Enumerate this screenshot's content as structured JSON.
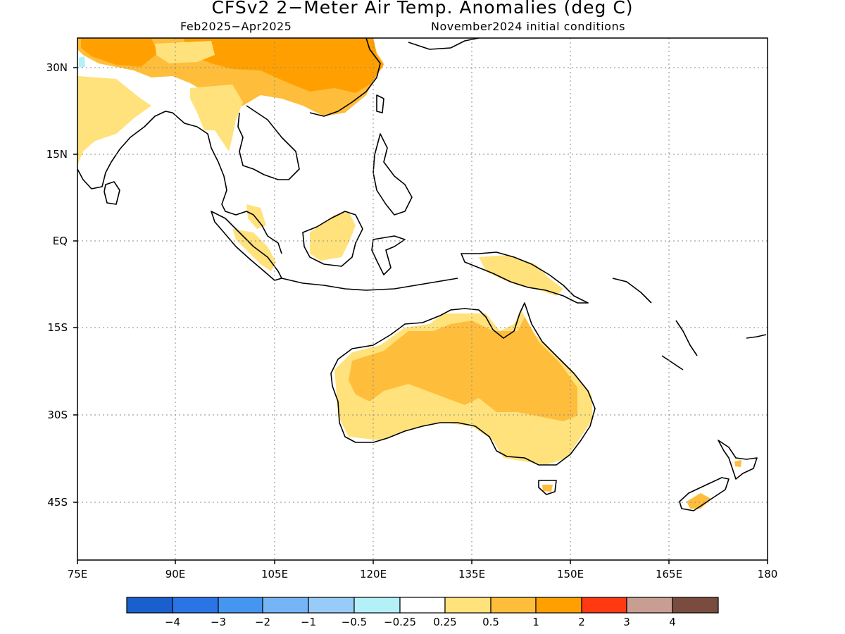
{
  "title": "CFSv2 2-Meter Air Temp. Anomalies (deg C)",
  "period": "Feb2025-Apr2025",
  "initial_conditions": "November2024 initial conditions",
  "axes": {
    "lat_labels": [
      "30N",
      "15N",
      "EQ",
      "15S",
      "30S",
      "45S"
    ],
    "lat_values": [
      30,
      15,
      0,
      -15,
      -30,
      -45
    ],
    "lon_labels": [
      "75E",
      "90E",
      "105E",
      "120E",
      "135E",
      "150E",
      "165E",
      "180"
    ],
    "lon_values": [
      75,
      90,
      105,
      120,
      135,
      150,
      165,
      180
    ],
    "lon_range": [
      75,
      180
    ],
    "lat_range": [
      -55,
      35
    ],
    "grid": true
  },
  "colorbar": {
    "colors": [
      "#1a5fce",
      "#2b74e6",
      "#4596ef",
      "#76b5f5",
      "#98ccf8",
      "#b4f0f8",
      "#ffffff",
      "#ffe27c",
      "#ffbd3c",
      "#ffa000",
      "#ff3a12",
      "#c89e92",
      "#7a4c40"
    ],
    "labels": [
      "-4",
      "-3",
      "-2",
      "-1",
      "-0.5",
      "-0.25",
      "0.25",
      "0.5",
      "1",
      "2",
      "3",
      "4"
    ]
  },
  "regions": [
    {
      "name": "Australia",
      "anomaly": "0.5-2"
    },
    {
      "name": "China",
      "anomaly": "1-2"
    },
    {
      "name": "India",
      "anomaly": "0.25-0.5"
    },
    {
      "name": "Borneo",
      "anomaly": "0.25-0.5"
    },
    {
      "name": "New Guinea",
      "anomaly": "0.25-0.5"
    },
    {
      "name": "New Zealand",
      "anomaly": "1-2"
    }
  ]
}
